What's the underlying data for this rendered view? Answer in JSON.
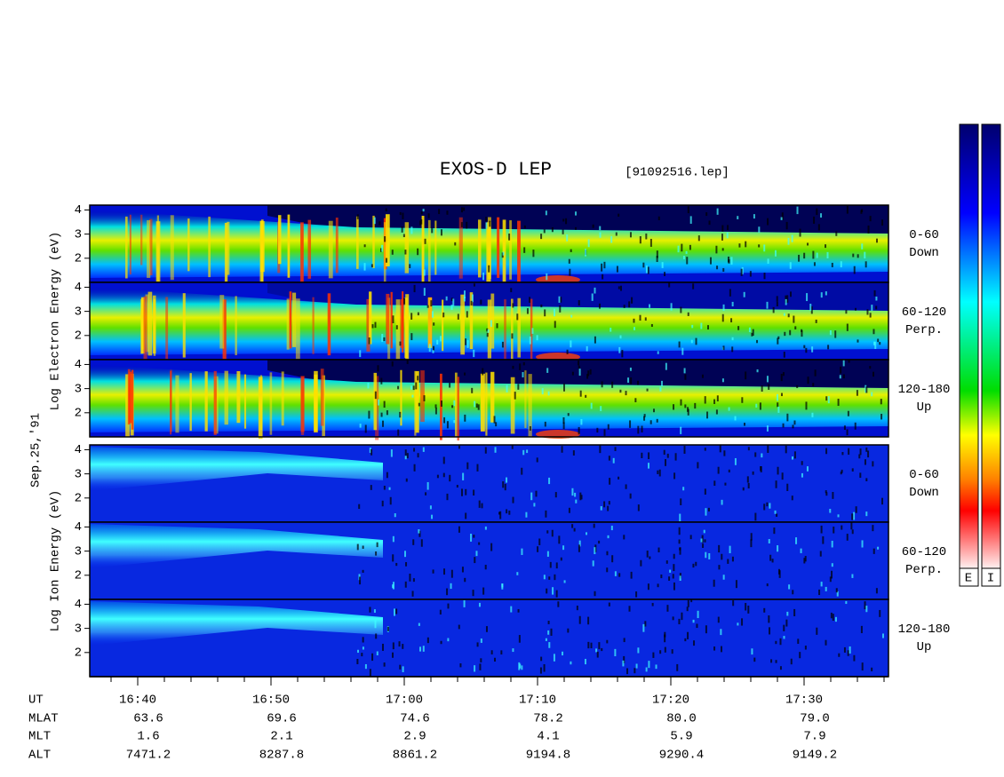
{
  "chart_data": {
    "type": "spectrogram",
    "title": "EXOS-D LEP",
    "file": "[91092516.lep]",
    "date": "Sep.25,'91",
    "groups": [
      {
        "label": "Log Electron Energy (eV)",
        "panels": [
          {
            "pitch": "0-60",
            "direction": "Down"
          },
          {
            "pitch": "60-120",
            "direction": "Perp."
          },
          {
            "pitch": "120-180",
            "direction": "Up"
          }
        ]
      },
      {
        "label": "Log Ion Energy (eV)",
        "panels": [
          {
            "pitch": "0-60",
            "direction": "Down"
          },
          {
            "pitch": "60-120",
            "direction": "Perp."
          },
          {
            "pitch": "120-180",
            "direction": "Up"
          }
        ]
      }
    ],
    "ylim": [
      1,
      4.2
    ],
    "yticks": [
      2,
      3,
      4
    ],
    "colorbar_labels": [
      "E",
      "I"
    ],
    "orbit": {
      "row_labels": [
        "UT",
        "MLAT",
        "MLT",
        "ALT"
      ],
      "UT": [
        "16:40",
        "16:50",
        "17:00",
        "17:10",
        "17:20",
        "17:30"
      ],
      "MLAT": [
        "63.6",
        "69.6",
        "74.6",
        "78.2",
        "80.0",
        "79.0"
      ],
      "MLT": [
        "1.6",
        "2.1",
        "2.9",
        "4.1",
        "5.9",
        "7.9"
      ],
      "ALT": [
        "7471.2",
        "8287.8",
        "8861.2",
        "9194.8",
        "9290.4",
        "9149.2"
      ]
    }
  }
}
